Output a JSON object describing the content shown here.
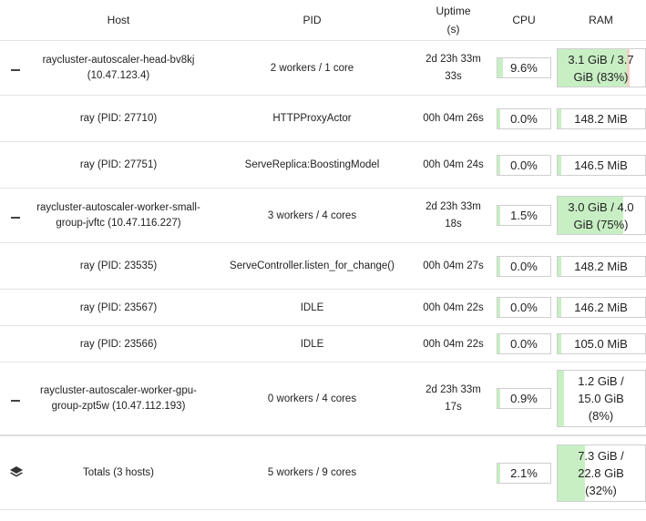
{
  "headers": {
    "host": "Host",
    "pid": "PID",
    "uptime": "Uptime (s)",
    "cpu": "CPU",
    "ram": "RAM"
  },
  "rows": [
    {
      "kind": "node",
      "host": "raycluster-autoscaler-head-bv8kj (10.47.123.4)",
      "pid": "2 workers / 1 core",
      "uptime": "2d 23h 33m 33s",
      "cpu": "9.6%",
      "cpu_fraction": 0.096,
      "ram": "3.1 GiB / 3.7 GiB (83%)",
      "ram_fraction": 0.83
    },
    {
      "kind": "worker",
      "host": "ray (PID: 27710)",
      "pid": "HTTPProxyActor",
      "uptime": "00h 04m 26s",
      "cpu": "0.0%",
      "cpu_fraction": 0.0,
      "ram": "148.2 MiB",
      "ram_fraction": 0.04
    },
    {
      "kind": "worker",
      "host": "ray (PID: 27751)",
      "pid": "ServeReplica:BoostingModel",
      "uptime": "00h 04m 24s",
      "cpu": "0.0%",
      "cpu_fraction": 0.0,
      "ram": "146.5 MiB",
      "ram_fraction": 0.04
    },
    {
      "kind": "node",
      "host": "raycluster-autoscaler-worker-small-group-jvftc (10.47.116.227)",
      "pid": "3 workers / 4 cores",
      "uptime": "2d 23h 33m 18s",
      "cpu": "1.5%",
      "cpu_fraction": 0.015,
      "ram": "3.0 GiB / 4.0 GiB (75%)",
      "ram_fraction": 0.75
    },
    {
      "kind": "worker",
      "host": "ray (PID: 23535)",
      "pid": "ServeController.listen_for_change()",
      "uptime": "00h 04m 27s",
      "cpu": "0.0%",
      "cpu_fraction": 0.0,
      "ram": "148.2 MiB",
      "ram_fraction": 0.04
    },
    {
      "kind": "worker",
      "host": "ray (PID: 23567)",
      "pid": "IDLE",
      "uptime": "00h 04m 22s",
      "cpu": "0.0%",
      "cpu_fraction": 0.0,
      "ram": "146.2 MiB",
      "ram_fraction": 0.04
    },
    {
      "kind": "worker",
      "host": "ray (PID: 23566)",
      "pid": "IDLE",
      "uptime": "00h 04m 22s",
      "cpu": "0.0%",
      "cpu_fraction": 0.0,
      "ram": "105.0 MiB",
      "ram_fraction": 0.03
    },
    {
      "kind": "node",
      "host": "raycluster-autoscaler-worker-gpu-group-zpt5w (10.47.112.193)",
      "pid": "0 workers / 4 cores",
      "uptime": "2d 23h 33m 17s",
      "cpu": "0.9%",
      "cpu_fraction": 0.009,
      "ram": "1.2 GiB / 15.0 GiB (8%)",
      "ram_fraction": 0.08
    }
  ],
  "totals": {
    "host": "Totals (3 hosts)",
    "pid": "5 workers / 9 cores",
    "cpu": "2.1%",
    "cpu_fraction": 0.021,
    "ram": "7.3 GiB / 22.8 GiB (32%)",
    "ram_fraction": 0.32
  },
  "icons": {
    "collapse": "minus-icon",
    "totals": "layers-icon"
  },
  "colors": {
    "meter_fill": "#c8efc4",
    "meter_high": "#f0d2c2",
    "border": "#e3e3e3"
  }
}
